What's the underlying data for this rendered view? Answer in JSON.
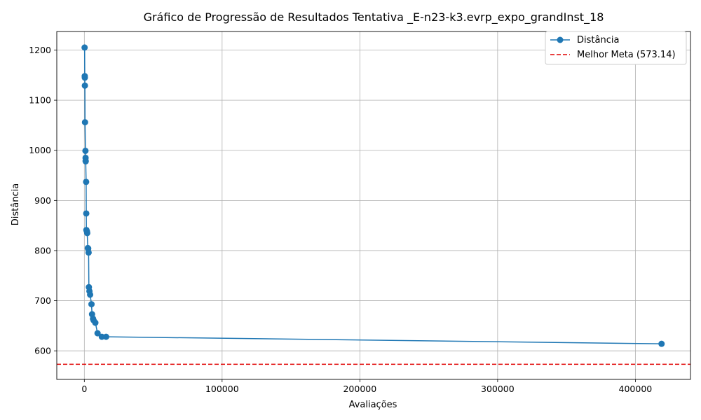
{
  "chart_data": {
    "type": "line",
    "title": "Gráfico de Progressão de Resultados Tentativa _E-n23-k3.evrp_expo_grandInst_18",
    "xlabel": "Avaliações",
    "ylabel": "Distância",
    "xlim": [
      -20000,
      440000
    ],
    "ylim": [
      543,
      1237
    ],
    "xticks": [
      0,
      100000,
      200000,
      300000,
      400000
    ],
    "xtick_labels": [
      "0",
      "100000",
      "200000",
      "300000",
      "400000"
    ],
    "yticks": [
      600,
      700,
      800,
      900,
      1000,
      1100,
      1200
    ],
    "ytick_labels": [
      "600",
      "700",
      "800",
      "900",
      "1000",
      "1100",
      "1200"
    ],
    "grid": true,
    "legend_position": "top-right",
    "series": [
      {
        "name": "Distância",
        "color": "#1f77b4",
        "marker": "circle",
        "x": [
          200,
          300,
          350,
          400,
          500,
          800,
          900,
          950,
          1000,
          1300,
          1400,
          1500,
          1900,
          2100,
          2500,
          2800,
          3100,
          3300,
          3700,
          4200,
          5200,
          5600,
          6300,
          6700,
          8000,
          9600,
          12700,
          15800,
          419000
        ],
        "y": [
          1205,
          1148,
          1145,
          1129,
          1056,
          999,
          985,
          979,
          978,
          937,
          874,
          841,
          838,
          835,
          805,
          804,
          796,
          727,
          719,
          712,
          693,
          673,
          664,
          661,
          656,
          635,
          628,
          628,
          614
        ]
      }
    ],
    "reference_lines": [
      {
        "name": "Melhor Meta (573.14)",
        "y": 573.14,
        "color": "#e00000",
        "style": "dashed"
      }
    ]
  }
}
